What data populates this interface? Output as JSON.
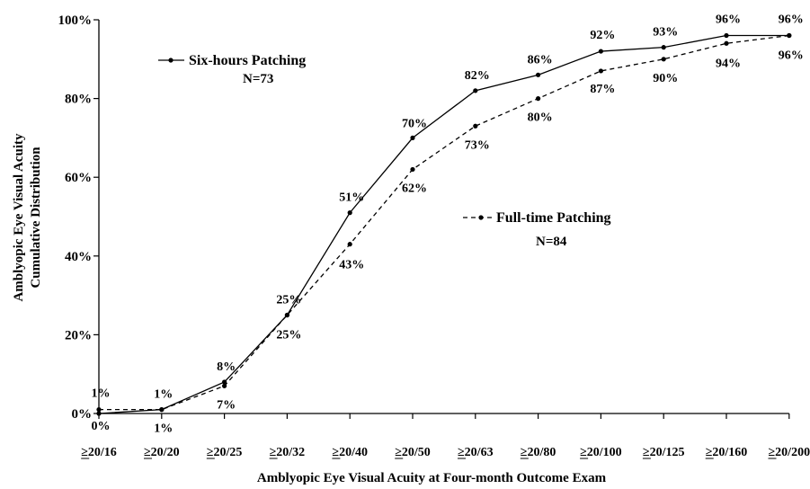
{
  "chart_data": {
    "type": "line",
    "xlabel": "Amblyopic Eye Visual Acuity at Four-month Outcome Exam",
    "ylabel_lines": [
      "Amblyopic Eye Visual Acuity",
      "Cumulative Distribution"
    ],
    "categories": [
      "≥20/16",
      "≥20/20",
      "≥20/25",
      "≥20/32",
      "≥20/40",
      "≥20/50",
      "≥20/63",
      "≥20/80",
      "≥20/100",
      "≥20/125",
      "≥20/160",
      "≥20/200"
    ],
    "ylim": [
      0,
      100
    ],
    "y_ticks": [
      "0%",
      "20%",
      "40%",
      "60%",
      "80%",
      "100%"
    ],
    "grid": false,
    "series": [
      {
        "name": "Six-hours Patching",
        "n_label": "N=73",
        "line_style": "solid",
        "values": [
          0,
          1,
          8,
          25,
          51,
          70,
          82,
          86,
          92,
          93,
          96,
          96
        ],
        "labels": [
          "0%",
          "1%",
          "8%",
          "25%",
          "51%",
          "70%",
          "82%",
          "86%",
          "92%",
          "93%",
          "96%",
          "96%"
        ]
      },
      {
        "name": "Full-time Patching",
        "n_label": "N=84",
        "line_style": "dashed",
        "values": [
          1,
          1,
          7,
          25,
          43,
          62,
          73,
          80,
          87,
          90,
          94,
          96
        ],
        "labels": [
          "1%",
          "1%",
          "7%",
          "25%",
          "43%",
          "62%",
          "73%",
          "80%",
          "87%",
          "90%",
          "94%",
          "96%"
        ]
      }
    ]
  }
}
